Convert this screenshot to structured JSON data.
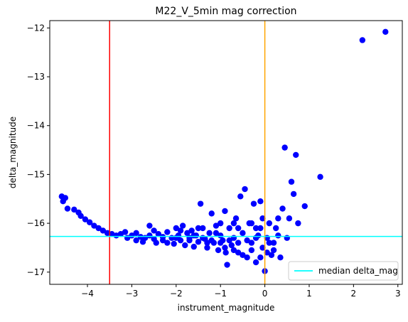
{
  "chart_data": {
    "type": "scatter",
    "title": "M22_V_5min mag correction",
    "xlabel": "instrument_magnitude",
    "ylabel": "delta_magnitude",
    "xlim": [
      -4.85,
      3.1
    ],
    "ylim": [
      -17.25,
      -11.85
    ],
    "x_ticks": [
      -4,
      -3,
      -2,
      -1,
      0,
      1,
      2,
      3
    ],
    "y_ticks": [
      -17,
      -16,
      -15,
      -14,
      -13,
      -12
    ],
    "grid": false,
    "legend_position": "lower-right",
    "point_color": "#0000ff",
    "median_delta_mag": -16.27,
    "vertical_lines": [
      {
        "x": -3.5,
        "color": "#ff0000"
      },
      {
        "x": 0.0,
        "color": "#ffa500"
      }
    ],
    "series": [
      {
        "name": "",
        "color": "#0000ff",
        "points": [
          [
            -4.58,
            -15.45
          ],
          [
            -4.55,
            -15.55
          ],
          [
            -4.5,
            -15.48
          ],
          [
            -4.45,
            -15.7
          ],
          [
            -4.3,
            -15.72
          ],
          [
            -4.2,
            -15.78
          ],
          [
            -4.15,
            -15.85
          ],
          [
            -4.05,
            -15.92
          ],
          [
            -3.95,
            -15.98
          ],
          [
            -3.85,
            -16.05
          ],
          [
            -3.75,
            -16.1
          ],
          [
            -3.65,
            -16.15
          ],
          [
            -3.55,
            -16.2
          ],
          [
            -3.45,
            -16.22
          ],
          [
            -3.35,
            -16.25
          ],
          [
            -3.25,
            -16.22
          ],
          [
            -3.15,
            -16.18
          ],
          [
            -3.1,
            -16.3
          ],
          [
            -3.0,
            -16.25
          ],
          [
            -2.9,
            -16.35
          ],
          [
            -2.8,
            -16.28
          ],
          [
            -2.75,
            -16.38
          ],
          [
            -2.7,
            -16.3
          ],
          [
            -2.6,
            -16.05
          ],
          [
            -2.5,
            -16.32
          ],
          [
            -2.45,
            -16.4
          ],
          [
            -2.4,
            -16.22
          ],
          [
            -2.3,
            -16.35
          ],
          [
            -2.2,
            -16.18
          ],
          [
            -2.1,
            -16.3
          ],
          [
            -2.05,
            -16.42
          ],
          [
            -2.0,
            -16.1
          ],
          [
            -1.95,
            -16.25
          ],
          [
            -1.9,
            -16.35
          ],
          [
            -1.85,
            -16.05
          ],
          [
            -1.8,
            -16.45
          ],
          [
            -1.75,
            -16.2
          ],
          [
            -1.7,
            -16.3
          ],
          [
            -1.65,
            -16.15
          ],
          [
            -1.6,
            -16.48
          ],
          [
            -1.55,
            -16.25
          ],
          [
            -1.5,
            -16.38
          ],
          [
            -1.45,
            -15.6
          ],
          [
            -1.4,
            -16.1
          ],
          [
            -1.35,
            -16.32
          ],
          [
            -1.3,
            -16.5
          ],
          [
            -1.25,
            -16.2
          ],
          [
            -1.2,
            -15.8
          ],
          [
            -1.15,
            -16.4
          ],
          [
            -1.1,
            -16.05
          ],
          [
            -1.05,
            -16.55
          ],
          [
            -1.0,
            -16.25
          ],
          [
            -0.95,
            -16.35
          ],
          [
            -0.9,
            -15.75
          ],
          [
            -0.88,
            -16.6
          ],
          [
            -0.85,
            -16.85
          ],
          [
            -0.8,
            -16.1
          ],
          [
            -0.75,
            -16.45
          ],
          [
            -0.7,
            -16.3
          ],
          [
            -0.65,
            -15.9
          ],
          [
            -0.6,
            -16.6
          ],
          [
            -0.55,
            -15.45
          ],
          [
            -0.5,
            -16.2
          ],
          [
            -0.45,
            -15.3
          ],
          [
            -0.4,
            -16.7
          ],
          [
            -0.35,
            -16.0
          ],
          [
            -0.3,
            -16.4
          ],
          [
            -0.25,
            -15.6
          ],
          [
            -0.2,
            -16.8
          ],
          [
            -0.15,
            -16.25
          ],
          [
            -0.1,
            -15.55
          ],
          [
            -0.05,
            -16.5
          ],
          [
            0.0,
            -16.98
          ],
          [
            0.05,
            -16.3
          ],
          [
            0.1,
            -16.0
          ],
          [
            0.15,
            -16.65
          ],
          [
            0.2,
            -16.4
          ],
          [
            0.25,
            -16.1
          ],
          [
            0.3,
            -15.9
          ],
          [
            0.35,
            -16.7
          ],
          [
            0.4,
            -15.7
          ],
          [
            0.45,
            -14.45
          ],
          [
            0.5,
            -16.3
          ],
          [
            0.55,
            -15.9
          ],
          [
            0.6,
            -15.15
          ],
          [
            0.65,
            -15.4
          ],
          [
            0.7,
            -14.6
          ],
          [
            0.75,
            -16.0
          ],
          [
            0.9,
            -15.65
          ],
          [
            1.25,
            -15.05
          ],
          [
            2.2,
            -12.25
          ],
          [
            2.72,
            -12.08
          ],
          [
            -2.9,
            -16.2
          ],
          [
            -2.6,
            -16.25
          ],
          [
            -2.3,
            -16.28
          ],
          [
            -2.0,
            -16.3
          ],
          [
            -1.7,
            -16.35
          ],
          [
            -1.4,
            -16.3
          ],
          [
            -1.2,
            -16.35
          ],
          [
            -1.0,
            -16.4
          ],
          [
            -0.8,
            -16.35
          ],
          [
            -0.6,
            -16.4
          ],
          [
            -0.4,
            -16.35
          ],
          [
            -0.2,
            -16.3
          ],
          [
            -0.1,
            -16.1
          ],
          [
            0.1,
            -16.4
          ],
          [
            0.3,
            -16.25
          ],
          [
            -2.5,
            -16.15
          ],
          [
            -2.2,
            -16.4
          ],
          [
            -1.9,
            -16.15
          ],
          [
            -1.6,
            -16.25
          ],
          [
            -1.3,
            -16.4
          ],
          [
            -1.1,
            -16.2
          ],
          [
            -0.9,
            -16.5
          ],
          [
            -0.7,
            -16.55
          ],
          [
            -0.5,
            -16.65
          ],
          [
            -0.3,
            -16.55
          ],
          [
            -0.1,
            -16.7
          ],
          [
            0.2,
            -16.55
          ],
          [
            -1.5,
            -16.1
          ],
          [
            -1.0,
            -16.0
          ],
          [
            -0.6,
            -16.1
          ],
          [
            -0.3,
            -16.0
          ],
          [
            -0.05,
            -15.9
          ],
          [
            -0.7,
            -16.0
          ],
          [
            -0.2,
            -16.1
          ],
          [
            0.05,
            -16.6
          ]
        ]
      }
    ],
    "legend": [
      {
        "label": "median delta_mag",
        "color": "#00ffff"
      }
    ]
  }
}
